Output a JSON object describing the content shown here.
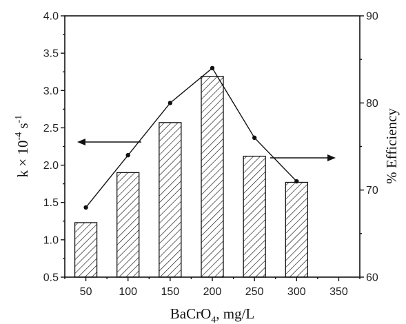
{
  "chart_data": {
    "type": "bar",
    "xlabel_main": "BaCrO",
    "xlabel_sub": "4",
    "xlabel_tail": ", mg/L",
    "ylabel_left_pre": "k × 10",
    "ylabel_left_sup1": "-4",
    "ylabel_left_mid": " s",
    "ylabel_left_sup2": "-1",
    "ylabel_right": "% Efficiency",
    "xlim": [
      25,
      375
    ],
    "x_ticks": [
      "50",
      "100",
      "150",
      "200",
      "250",
      "300",
      "350"
    ],
    "x_tick_values": [
      50,
      100,
      150,
      200,
      250,
      300,
      350
    ],
    "ylim_left": [
      0.5,
      4.0
    ],
    "y_left_ticks": [
      "0.5",
      "1.0",
      "1.5",
      "2.0",
      "2.5",
      "3.0",
      "3.5",
      "4.0"
    ],
    "y_left_tick_values": [
      0.5,
      1.0,
      1.5,
      2.0,
      2.5,
      3.0,
      3.5,
      4.0
    ],
    "ylim_right": [
      60,
      90
    ],
    "y_right_ticks": [
      "60",
      "70",
      "80",
      "90"
    ],
    "y_right_tick_values": [
      60,
      70,
      80,
      90
    ],
    "bars": {
      "axis": "left",
      "x": [
        50,
        100,
        150,
        200,
        250,
        300
      ],
      "values": [
        1.23,
        1.9,
        2.57,
        3.19,
        2.12,
        1.77
      ]
    },
    "line": {
      "axis": "right",
      "x": [
        50,
        100,
        150,
        200,
        250,
        300
      ],
      "values": [
        68,
        74,
        80,
        84,
        76,
        71
      ]
    },
    "annotations": [
      {
        "type": "arrow-left",
        "meaning": "bars read on left axis"
      },
      {
        "type": "arrow-right",
        "meaning": "line read on right axis"
      }
    ],
    "grid": false,
    "legend": "none"
  }
}
